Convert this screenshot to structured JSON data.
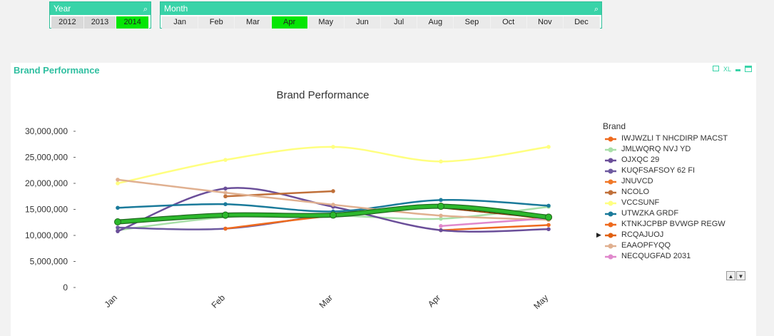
{
  "year_box": {
    "title": "Year",
    "items": [
      "2012",
      "2013",
      "2014"
    ],
    "selected": "2014"
  },
  "month_box": {
    "title": "Month",
    "items": [
      "Jan",
      "Feb",
      "Mar",
      "Apr",
      "May",
      "Jun",
      "Jul",
      "Aug",
      "Sep",
      "Oct",
      "Nov",
      "Dec"
    ],
    "selected": "Apr"
  },
  "panel": {
    "title": "Brand Performance",
    "xl_label": "XL"
  },
  "colors": {
    "accent": "#39d3a8",
    "selected": "#05e605"
  },
  "chart_data": {
    "type": "line",
    "title": "Brand Performance",
    "legend_title": "Brand",
    "legend_position": "right",
    "categories": [
      "Jan",
      "Feb",
      "Mar",
      "Apr",
      "May"
    ],
    "ylim": [
      0,
      30000000
    ],
    "yticks": [
      0,
      5000000,
      10000000,
      15000000,
      20000000,
      25000000,
      30000000
    ],
    "ytick_labels": [
      "0",
      "5,000,000",
      "10,000,000",
      "15,000,000",
      "20,000,000",
      "25,000,000",
      "30,000,000"
    ],
    "series": [
      {
        "name": "IWJWZLI T NHCDIRP MACST",
        "color": "#ee6a1e",
        "values": [
          null,
          null,
          null,
          11000000,
          12000000
        ]
      },
      {
        "name": "JMLWQRQ NVJ YD",
        "color": "#a8dfa8",
        "values": [
          11000000,
          13500000,
          13800000,
          13200000,
          15500000
        ]
      },
      {
        "name": "OJXQC 29",
        "color": "#6a4e99",
        "values": [
          10800000,
          19000000,
          15500000,
          11000000,
          11200000
        ]
      },
      {
        "name": "KUQFSAFSOY 62 FI",
        "color": "#6e5aa0",
        "values": [
          11500000,
          11300000,
          14000000,
          15500000,
          13400000
        ]
      },
      {
        "name": "JNUVCD",
        "color": "#f07828",
        "values": [
          null,
          null,
          null,
          null,
          13000000
        ]
      },
      {
        "name": "NCOLO",
        "color": "#c0703a",
        "values": [
          null,
          17500000,
          18500000,
          null,
          null
        ]
      },
      {
        "name": "VCCSUNF",
        "color": "#ffff80",
        "values": [
          20000000,
          24500000,
          27000000,
          24200000,
          27000000
        ]
      },
      {
        "name": "UTWZKA GRDF",
        "color": "#1a7a9a",
        "values": [
          15300000,
          16000000,
          14600000,
          16800000,
          15700000
        ]
      },
      {
        "name": "KTNKJCPBP BVWGP REGW",
        "color": "#ee6a1e",
        "values": [
          null,
          11300000,
          13800000,
          15500000,
          13000000
        ]
      },
      {
        "name": "RCQAJUOJ",
        "color": "#e06010",
        "values": [
          null,
          null,
          null,
          15600000,
          13500000
        ]
      },
      {
        "name": "EAAOPFYQQ",
        "color": "#e0b090",
        "values": [
          20700000,
          18200000,
          15900000,
          13800000,
          13000000
        ]
      },
      {
        "name": "NECQUGFAD 2031",
        "color": "#e088cc",
        "values": [
          null,
          null,
          null,
          11800000,
          13300000
        ]
      },
      {
        "name": "highlighted",
        "color": "#2cb82c",
        "values": [
          12600000,
          13900000,
          13900000,
          15600000,
          13500000
        ]
      }
    ]
  }
}
